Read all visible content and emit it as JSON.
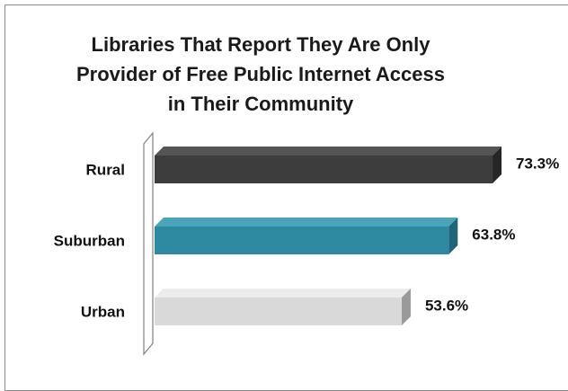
{
  "chart_data": {
    "type": "bar",
    "orientation": "horizontal",
    "title_lines": [
      "Libraries That Report They Are Only",
      "Provider of Free Public Internet Access",
      "in Their Community"
    ],
    "categories": [
      "Rural",
      "Suburban",
      "Urban"
    ],
    "values": [
      73.3,
      63.8,
      53.6
    ],
    "value_labels": [
      "73.3%",
      "63.8%",
      "53.6%"
    ],
    "colors": [
      "#3d3d3d",
      "#2e8aa0",
      "#d9d9d9"
    ],
    "side_colors": [
      "#262626",
      "#1f6577",
      "#9a9a9a"
    ],
    "top_colors": [
      "#555555",
      "#4aa3b8",
      "#ececec"
    ],
    "xlim": [
      0,
      100
    ],
    "grid": false,
    "legend": "none",
    "style": "3d"
  }
}
